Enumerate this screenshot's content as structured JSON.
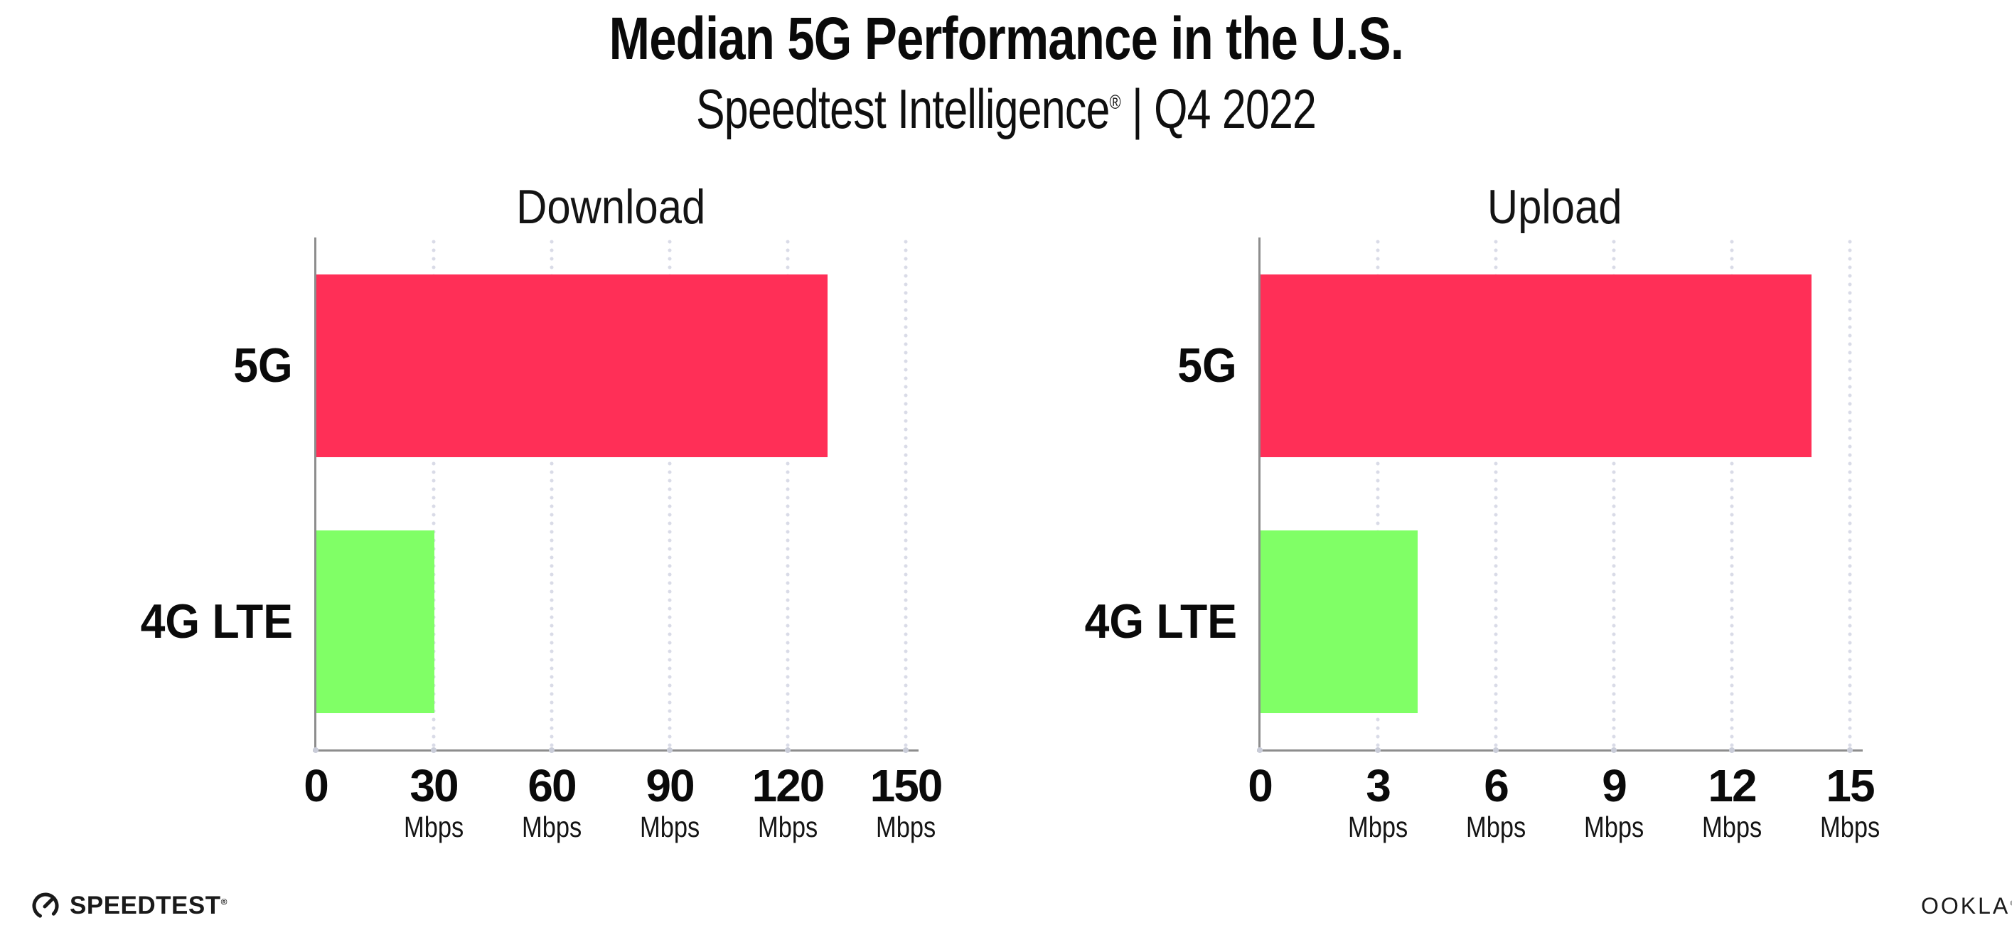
{
  "header": {
    "title": "Median 5G Performance in the U.S.",
    "subtitle_brand": "Speedtest Intelligence",
    "subtitle_reg": "®",
    "subtitle_rest": " | Q4 2022"
  },
  "chart_data": [
    {
      "type": "bar",
      "orientation": "horizontal",
      "title": "Download",
      "categories": [
        "5G",
        "4G LTE"
      ],
      "values": [
        130,
        30
      ],
      "unit": "Mbps",
      "xlim": [
        0,
        150
      ],
      "xticks": [
        0,
        30,
        60,
        90,
        120,
        150
      ],
      "bar_colors": [
        "#ff2f57",
        "#80ff66"
      ],
      "grid": "dotted-vertical-at-ticks",
      "legend": "none"
    },
    {
      "type": "bar",
      "orientation": "horizontal",
      "title": "Upload",
      "categories": [
        "5G",
        "4G LTE"
      ],
      "values": [
        14,
        4
      ],
      "unit": "Mbps",
      "xlim": [
        0,
        15
      ],
      "xticks": [
        0,
        3,
        6,
        9,
        12,
        15
      ],
      "bar_colors": [
        "#ff2f57",
        "#80ff66"
      ],
      "grid": "dotted-vertical-at-ticks",
      "legend": "none"
    }
  ],
  "colors": {
    "bar_5g": "#ff2f57",
    "bar_4g_lte": "#80ff66",
    "axis_line": "#8d8d8d",
    "gridline_dot": "#d9dbe7",
    "axis_tick_dot": "#c9ccd8",
    "text": "#0a0a0a",
    "background": "#ffffff"
  },
  "footer": {
    "speedtest_label": "SPEEDTEST",
    "speedtest_reg": "®",
    "ookla_label": "OOKLA",
    "ookla_reg": "®"
  }
}
